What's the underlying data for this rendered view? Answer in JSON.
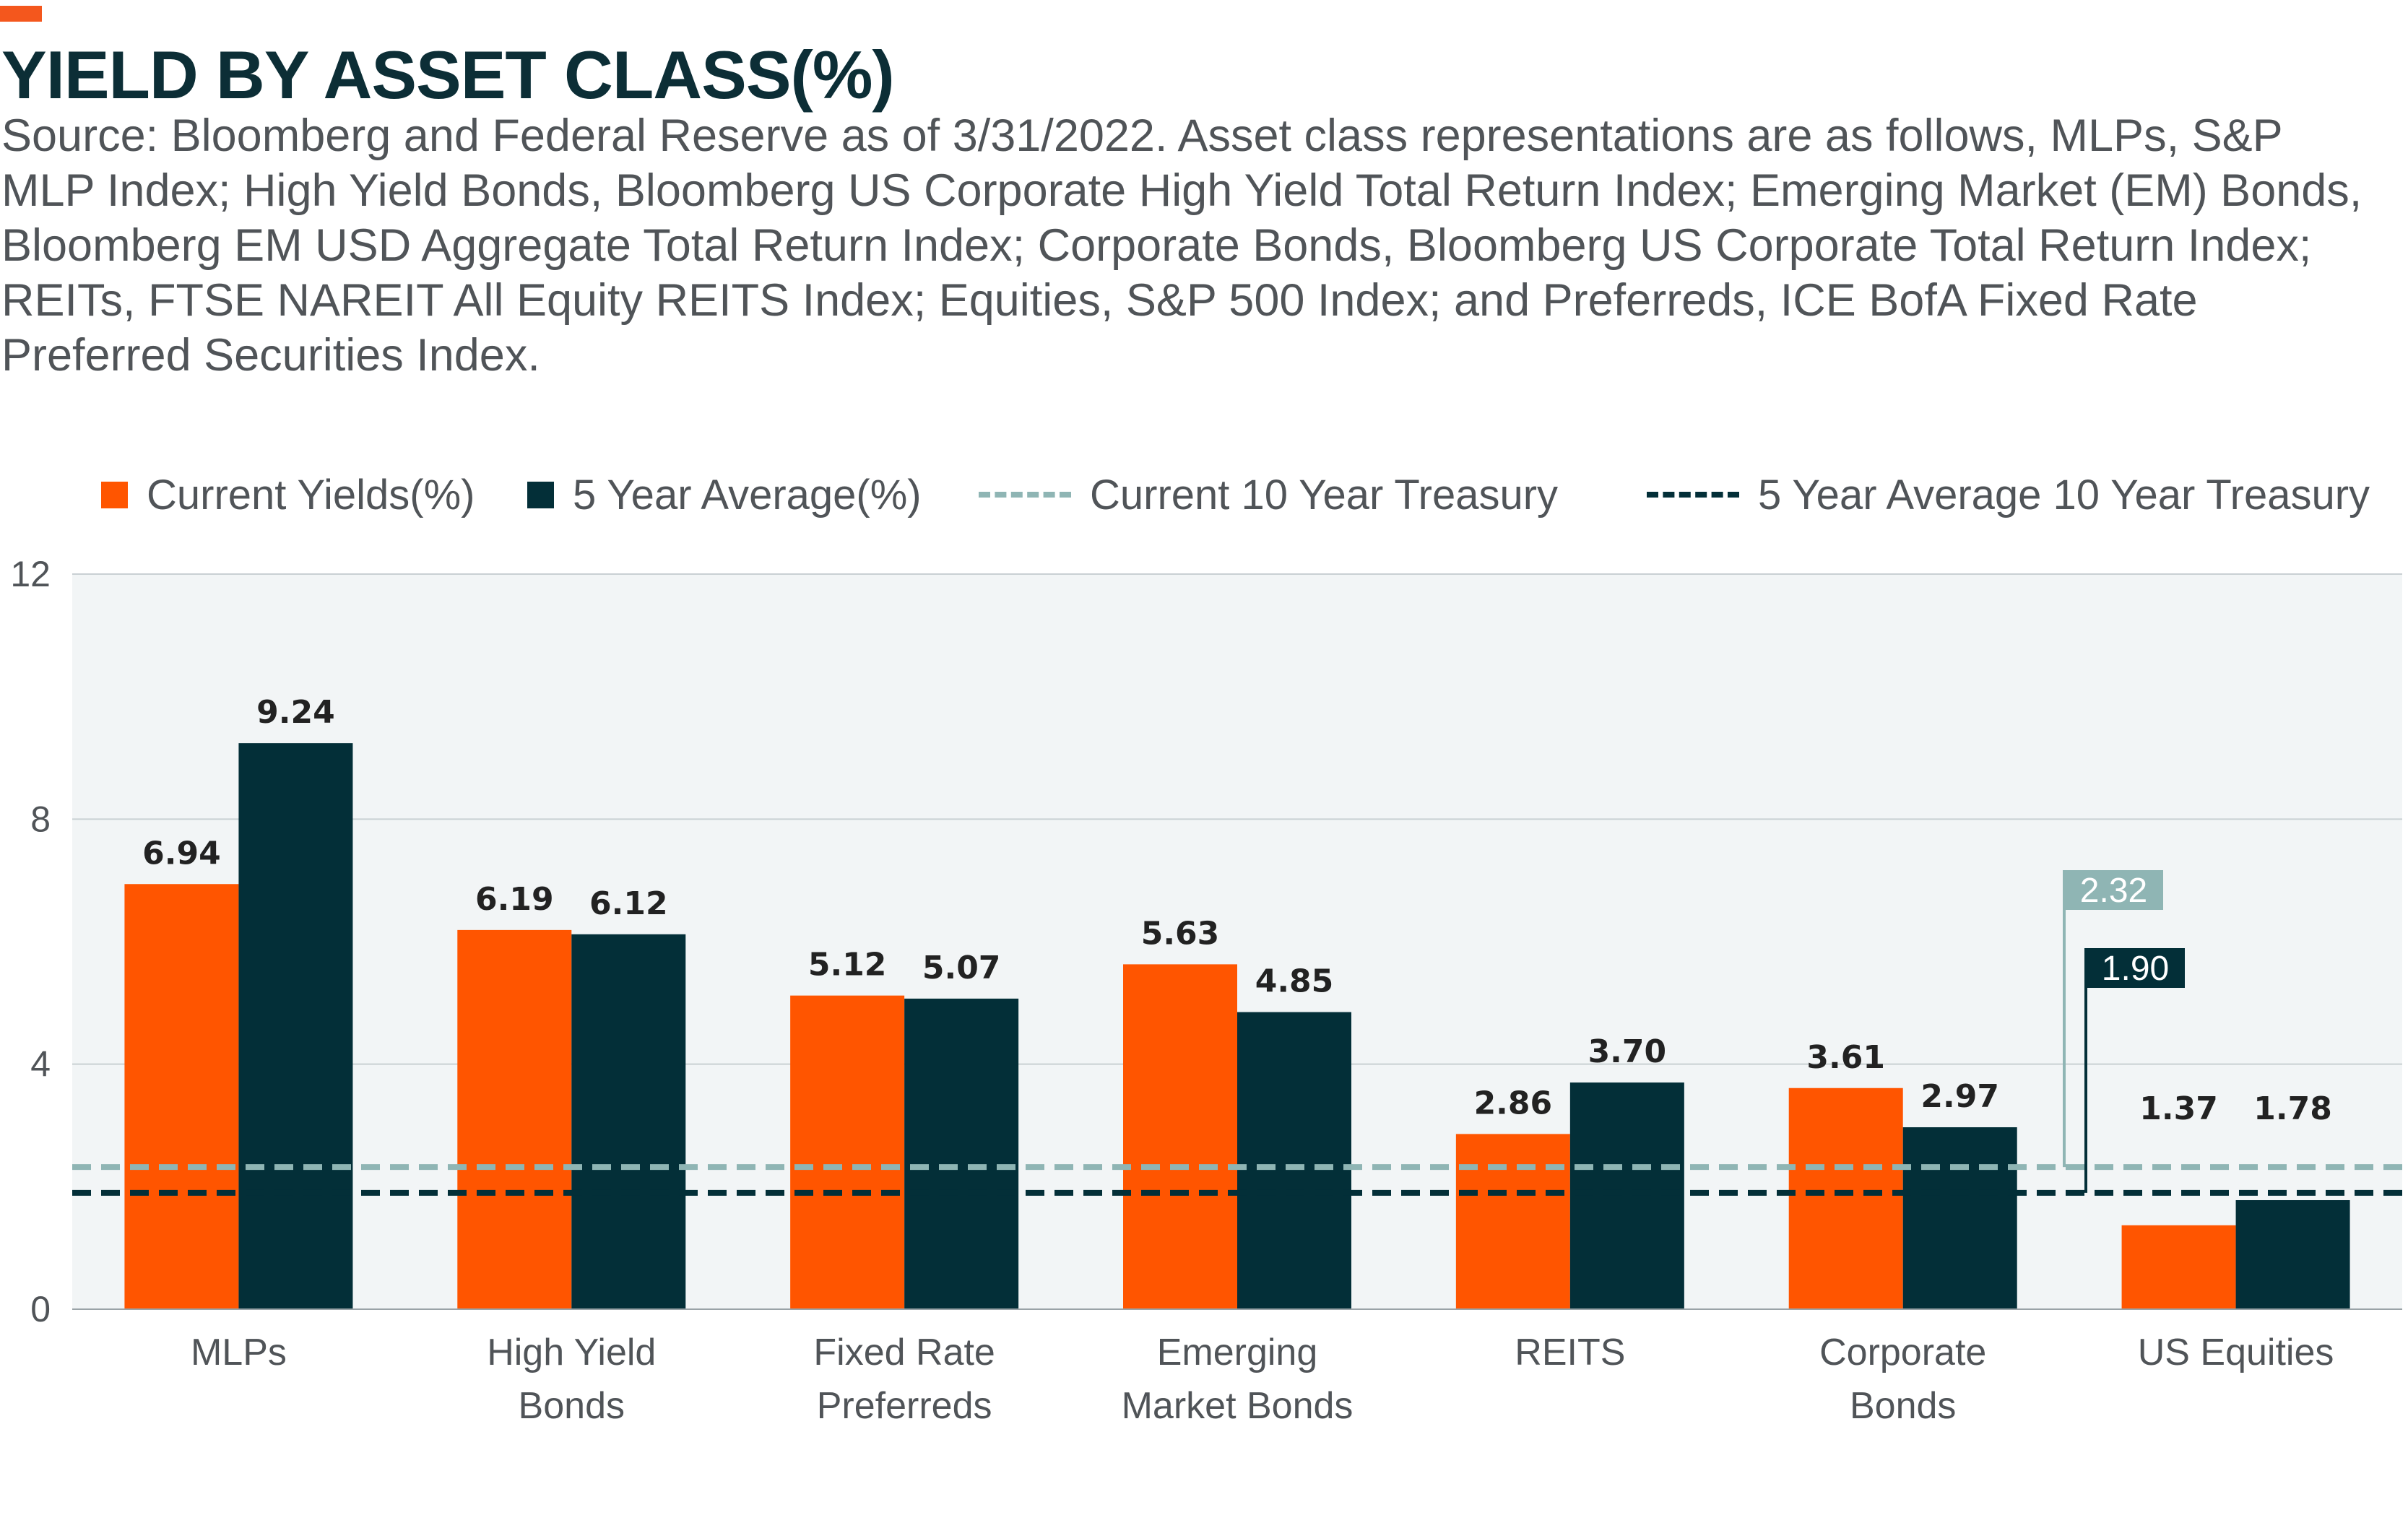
{
  "header": {
    "title": "YIELD BY ASSET CLASS(%)",
    "subtitle": "Source: Bloomberg and Federal Reserve as of 3/31/2022. Asset class representations are as follows, MLPs, S&P MLP Index; High Yield Bonds, Bloomberg US Corporate High Yield Total Return Index; Emerging Market (EM) Bonds, Bloomberg EM USD Aggregate Total Return Index; Corporate Bonds, Bloomberg US Corporate Total Return Index; REITs, FTSE NAREIT All Equity REITS Index; Equities, S&P 500 Index; and Preferreds, ICE BofA Fixed Rate Preferred Securities Index."
  },
  "legend": {
    "current_yields": "Current Yields(%)",
    "five_year_average": "5 Year Average(%)",
    "current_treasury": "Current 10 Year Treasury",
    "avg_treasury": "5 Year Average 10 Year Treasury"
  },
  "colors": {
    "current": "#FF5500",
    "average": "#032F38",
    "current_treasury": "#8FB5B4",
    "avg_treasury": "#032F38",
    "plot_bg": "#F2F5F6",
    "accent": "#F4571D"
  },
  "chart_data": {
    "type": "bar",
    "categories": [
      [
        "MLPs"
      ],
      [
        "High Yield",
        "Bonds"
      ],
      [
        "Fixed Rate",
        "Preferreds"
      ],
      [
        "Emerging",
        "Market Bonds"
      ],
      [
        "REITS"
      ],
      [
        "Corporate",
        "Bonds"
      ],
      [
        "US Equities"
      ]
    ],
    "series": [
      {
        "name": "Current Yields(%)",
        "values": [
          6.94,
          6.19,
          5.12,
          5.63,
          2.86,
          3.61,
          1.37
        ],
        "labels": [
          "6.94",
          "6.19",
          "5.12",
          "5.63",
          "2.86",
          "3.61",
          "1.37"
        ]
      },
      {
        "name": "5 Year Average(%)",
        "values": [
          9.24,
          6.12,
          5.07,
          4.85,
          3.7,
          2.97,
          1.78
        ],
        "labels": [
          "9.24",
          "6.12",
          "5.07",
          "4.85",
          "3.70",
          "2.97",
          "1.78"
        ]
      }
    ],
    "reference_lines": [
      {
        "name": "Current 10 Year Treasury",
        "value": 2.32,
        "label": "2.32",
        "style": "dashed"
      },
      {
        "name": "5 Year Average 10 Year Treasury",
        "value": 1.9,
        "label": "1.90",
        "style": "dashed"
      }
    ],
    "ylim": [
      0,
      12
    ],
    "yticks": [
      "0",
      "4",
      "8",
      "12"
    ],
    "grid": "horizontal",
    "legend_position": "top"
  }
}
